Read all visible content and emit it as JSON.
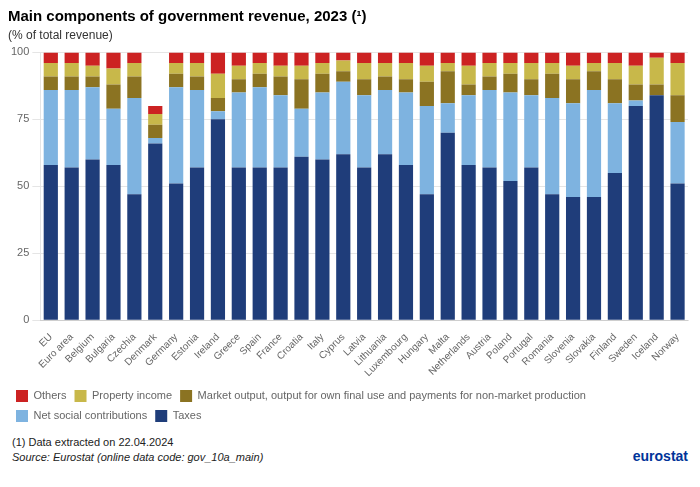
{
  "chart_data": {
    "type": "bar",
    "stacked": true,
    "title": "Main components of government revenue, 2023 (¹)",
    "subtitle": "(% of total revenue)",
    "footnote": "(1) Data extracted on 22.04.2024",
    "source": "Source: Eurostat (online data code: gov_10a_main)",
    "annotations": [
      "eurostat"
    ],
    "categories": [
      "EU",
      "Euro area",
      "Belgium",
      "Bulgaria",
      "Czechia",
      "Denmark",
      "Germany",
      "Estonia",
      "Ireland",
      "Greece",
      "Spain",
      "France",
      "Croatia",
      "Italy",
      "Cyprus",
      "Latvia",
      "Lithuania",
      "Luxembourg",
      "Hungary",
      "Malta",
      "Netherlands",
      "Austria",
      "Poland",
      "Portugal",
      "Romania",
      "Slovenia",
      "Slovakia",
      "Finland",
      "Sweden",
      "Iceland",
      "Norway"
    ],
    "series": [
      {
        "name": "Taxes",
        "color": "#1f3d7a",
        "values": [
          58,
          57,
          60,
          58,
          47,
          66,
          51,
          57,
          75,
          57,
          57,
          57,
          61,
          60,
          62,
          57,
          62,
          58,
          47,
          70,
          58,
          57,
          52,
          57,
          47,
          46,
          46,
          55,
          80,
          84,
          51
        ]
      },
      {
        "name": "Net social contributions",
        "color": "#7eb3e0",
        "values": [
          28,
          29,
          27,
          21,
          36,
          2,
          36,
          29,
          3,
          28,
          30,
          27,
          18,
          25,
          27,
          27,
          24,
          27,
          33,
          11,
          26,
          29,
          33,
          27,
          36,
          35,
          40,
          26,
          2,
          0,
          23
        ]
      },
      {
        "name": "Market output, output for own final use and payments for non-market production",
        "color": "#8b7322",
        "values": [
          5,
          5,
          4,
          9,
          8,
          5,
          5,
          5,
          5,
          5,
          5,
          7,
          11,
          7,
          4,
          6,
          5,
          5,
          9,
          12,
          4,
          5,
          7,
          6,
          9,
          9,
          7,
          9,
          6,
          4,
          10
        ]
      },
      {
        "name": "Property income",
        "color": "#c8b84a",
        "values": [
          5,
          5,
          4,
          6,
          5,
          4,
          4,
          5,
          9,
          5,
          4,
          4,
          5,
          4,
          4,
          6,
          5,
          6,
          6,
          3,
          7,
          5,
          4,
          6,
          4,
          5,
          3,
          6,
          7,
          10,
          12
        ]
      },
      {
        "name": "Others",
        "color": "#cc2222",
        "values": [
          4,
          4,
          5,
          6,
          4,
          3,
          4,
          4,
          8,
          5,
          4,
          5,
          5,
          4,
          3,
          4,
          4,
          4,
          5,
          4,
          5,
          4,
          4,
          4,
          4,
          5,
          4,
          4,
          5,
          2,
          4
        ]
      }
    ],
    "ylim": [
      0,
      100
    ],
    "yticks": [
      0,
      25,
      50,
      75,
      100
    ],
    "grid": true,
    "legend": "bottom"
  }
}
